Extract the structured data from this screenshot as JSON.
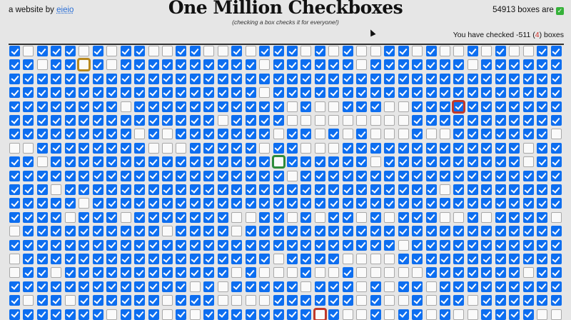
{
  "header": {
    "byline_prefix": "a website by ",
    "byline_link": "eieio",
    "title": "One Million Checkboxes",
    "subtitle": "(checking a box checks it for everyone!)",
    "total_count": "54913",
    "total_suffix": " boxes are ",
    "total_emoji": "✓",
    "mine_prefix": "You have checked ",
    "mine_count": "-511",
    "mine_open": " (",
    "mine_recent": "4",
    "mine_close": ") boxes"
  },
  "colors": {
    "checked": "#0d6ef0",
    "unchecked": "#fafafa",
    "accent_red": "#d0342c"
  },
  "grid": {
    "columns": 40,
    "rows": [
      "1011101011001100101110101001101001010011",
      "1101101011111111110111111011111110111111",
      "1111111111111111111111111111111111111111",
      "1111111111111111110111111111111111111111",
      "1111111101111111111101001110011111111111",
      "1111111111111110111100000000011111111111",
      "1111111110101111111011010100010011111110",
      "0011111111000111110110001111111111111011",
      "1101111111111111111011111101111111111011",
      "1111111111111111111101111111111111111111",
      "1110111111111111111111111111111011111111",
      "1111101111111111111111111111111111111111",
      "1111011101111111001101011010111001011110",
      "0111111111101111011111111111111111111111",
      "1111111111111111111111111111011111111111",
      "0111111111111111111011110000111111111111",
      "0110111111111111010001001000001111111011",
      "1111111111111010111110111010110111111111",
      "1011011111101110000111111010010110111111",
      "1111111011101011111111010010110100111100"
    ],
    "highlights": [
      {
        "row": 1,
        "col": 5,
        "color": "#b8891e"
      },
      {
        "row": 4,
        "col": 32,
        "color": "#c0392b"
      },
      {
        "row": 8,
        "col": 19,
        "color": "#2e8b3a"
      },
      {
        "row": 19,
        "col": 22,
        "color": "#c0392b"
      }
    ]
  }
}
